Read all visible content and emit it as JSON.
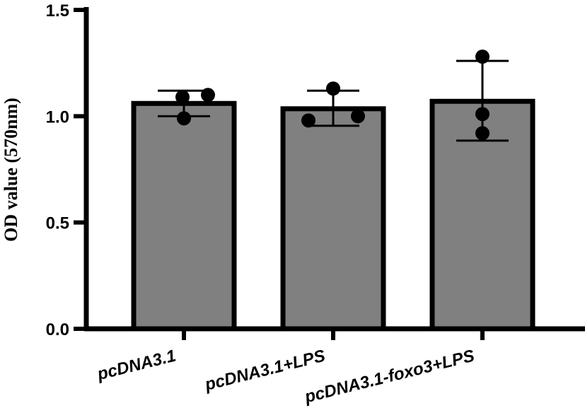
{
  "chart_data": {
    "type": "bar",
    "title": "",
    "xlabel": "",
    "ylabel": "OD value (570nm)",
    "ylim": [
      0,
      1.5
    ],
    "yticks": [
      0.0,
      0.5,
      1.0,
      1.5
    ],
    "ytick_labels": [
      "0.0",
      "0.5",
      "1.0",
      "1.5"
    ],
    "grid": false,
    "bar_color": "#808080",
    "edge_color": "#000000",
    "categories": [
      "pcDNA3.1",
      "pcDNA3.1+LPS",
      "pcDNA3.1-foxo3+LPS"
    ],
    "values": [
      1.06,
      1.035,
      1.07
    ],
    "error_upper": [
      1.12,
      1.12,
      1.26
    ],
    "error_lower": [
      1.0,
      0.955,
      0.885
    ],
    "points": [
      [
        1.09,
        1.1,
        0.99
      ],
      [
        1.13,
        0.98,
        1.0
      ],
      [
        1.28,
        1.01,
        0.92
      ]
    ]
  }
}
